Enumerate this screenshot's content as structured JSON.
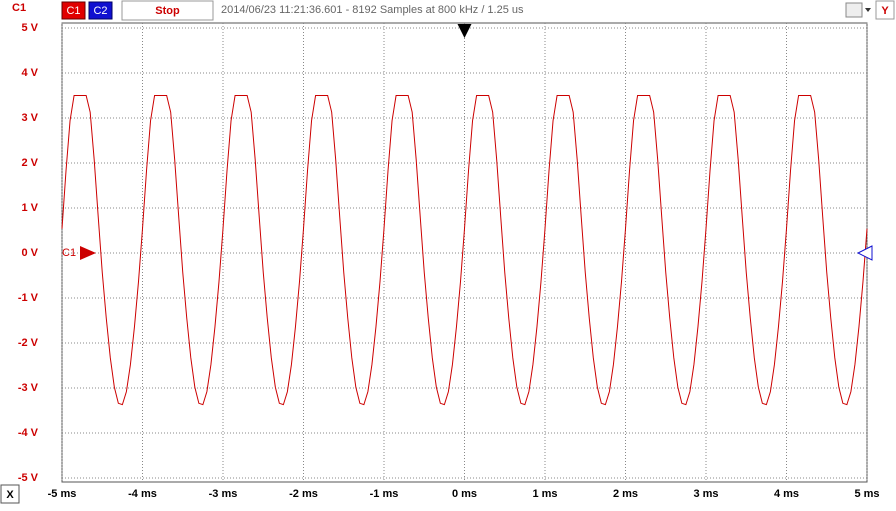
{
  "chart_data": {
    "type": "line",
    "y_axis_label": "C1",
    "buttons": [
      "C1",
      "C2",
      "Stop"
    ],
    "status": "2014/06/23 11:21:36.601 - 8192 Samples at 800 kHz / 1.25 us",
    "y_button": "Y",
    "x_button": "X",
    "xlim": [
      -5,
      5
    ],
    "ylim": [
      -5,
      5
    ],
    "xticks": [
      {
        "value": -5,
        "label": "-5 ms"
      },
      {
        "value": -4,
        "label": "-4 ms"
      },
      {
        "value": -3,
        "label": "-3 ms"
      },
      {
        "value": -2,
        "label": "-2 ms"
      },
      {
        "value": -1,
        "label": "-1 ms"
      },
      {
        "value": 0,
        "label": "0 ms"
      },
      {
        "value": 1,
        "label": "1 ms"
      },
      {
        "value": 2,
        "label": "2 ms"
      },
      {
        "value": 3,
        "label": "3 ms"
      },
      {
        "value": 4,
        "label": "4 ms"
      },
      {
        "value": 5,
        "label": "5 ms"
      }
    ],
    "yticks": [
      {
        "value": 5,
        "label": "5 V"
      },
      {
        "value": 4,
        "label": "4 V"
      },
      {
        "value": 3,
        "label": "3 V"
      },
      {
        "value": 2,
        "label": "2 V"
      },
      {
        "value": 1,
        "label": "1 V"
      },
      {
        "value": 0,
        "label": "0 V"
      },
      {
        "value": -1,
        "label": "-1 V"
      },
      {
        "value": -2,
        "label": "-2 V"
      },
      {
        "value": -3,
        "label": "-3 V"
      },
      {
        "value": -4,
        "label": "-4 V"
      },
      {
        "value": -5,
        "label": "-5 V"
      }
    ],
    "grid": true,
    "x": [
      -5,
      -4.95,
      -4.9,
      -4.85,
      -4.8,
      -4.75,
      -4.7,
      -4.65,
      -4.6,
      -4.55,
      -4.5,
      -4.45,
      -4.4,
      -4.35,
      -4.3,
      -4.25,
      -4.2,
      -4.15,
      -4.1,
      -4.05,
      -4,
      -3.95,
      -3.9,
      -3.85,
      -3.8,
      -3.75,
      -3.7,
      -3.65,
      -3.6,
      -3.55,
      -3.5,
      -3.45,
      -3.4,
      -3.35,
      -3.3,
      -3.25,
      -3.2,
      -3.15,
      -3.1,
      -3.05,
      -3,
      -2.95,
      -2.9,
      -2.85,
      -2.8,
      -2.75,
      -2.7,
      -2.65,
      -2.6,
      -2.55,
      -2.5,
      -2.45,
      -2.4,
      -2.35,
      -2.3,
      -2.25,
      -2.2,
      -2.15,
      -2.1,
      -2.05,
      -2,
      -1.95,
      -1.9,
      -1.85,
      -1.8,
      -1.75,
      -1.7,
      -1.65,
      -1.6,
      -1.55,
      -1.5,
      -1.45,
      -1.4,
      -1.35,
      -1.3,
      -1.25,
      -1.2,
      -1.15,
      -1.1,
      -1.05,
      -1,
      -0.95,
      -0.9,
      -0.85,
      -0.8,
      -0.75,
      -0.7,
      -0.65,
      -0.6,
      -0.55,
      -0.5,
      -0.45,
      -0.4,
      -0.35,
      -0.3,
      -0.25,
      -0.2,
      -0.15,
      -0.1,
      -0.05,
      0,
      0.05,
      0.1,
      0.15,
      0.2,
      0.25,
      0.3,
      0.35,
      0.4,
      0.45,
      0.5,
      0.55,
      0.6,
      0.65,
      0.7,
      0.75,
      0.8,
      0.85,
      0.9,
      0.95,
      1,
      1.05,
      1.1,
      1.15,
      1.2,
      1.25,
      1.3,
      1.35,
      1.4,
      1.45,
      1.5,
      1.55,
      1.6,
      1.65,
      1.7,
      1.75,
      1.8,
      1.85,
      1.9,
      1.95,
      2,
      2.05,
      2.1,
      2.15,
      2.2,
      2.25,
      2.3,
      2.35,
      2.4,
      2.45,
      2.5,
      2.55,
      2.6,
      2.65,
      2.7,
      2.75,
      2.8,
      2.85,
      2.9,
      2.95,
      3,
      3.05,
      3.1,
      3.15,
      3.2,
      3.25,
      3.3,
      3.35,
      3.4,
      3.45,
      3.5,
      3.55,
      3.6,
      3.65,
      3.7,
      3.75,
      3.8,
      3.85,
      3.9,
      3.95,
      4,
      4.05,
      4.1,
      4.15,
      4.2,
      4.25,
      4.3,
      4.35,
      4.4,
      4.45,
      4.5,
      4.55,
      4.6,
      4.65,
      4.7,
      4.75,
      4.8,
      4.85,
      4.9,
      4.95,
      5
    ],
    "series": [
      {
        "name": "C1",
        "color": "#cc0000",
        "values": [
          0.54,
          1.83,
          2.94,
          3.5,
          3.5,
          3.5,
          3.5,
          3.13,
          2.07,
          0.8,
          -0.43,
          -1.45,
          -2.33,
          -2.98,
          -3.34,
          -3.37,
          -3.08,
          -2.48,
          -1.64,
          -0.64,
          0.54,
          1.83,
          2.94,
          3.5,
          3.5,
          3.5,
          3.5,
          3.13,
          2.07,
          0.8,
          -0.43,
          -1.45,
          -2.33,
          -2.98,
          -3.34,
          -3.37,
          -3.08,
          -2.48,
          -1.64,
          -0.64,
          0.54,
          1.83,
          2.94,
          3.5,
          3.5,
          3.5,
          3.5,
          3.13,
          2.07,
          0.8,
          -0.43,
          -1.45,
          -2.33,
          -2.98,
          -3.34,
          -3.37,
          -3.08,
          -2.48,
          -1.64,
          -0.64,
          0.54,
          1.83,
          2.94,
          3.5,
          3.5,
          3.5,
          3.5,
          3.13,
          2.07,
          0.8,
          -0.43,
          -1.45,
          -2.33,
          -2.98,
          -3.34,
          -3.37,
          -3.08,
          -2.48,
          -1.64,
          -0.64,
          0.54,
          1.83,
          2.94,
          3.5,
          3.5,
          3.5,
          3.5,
          3.13,
          2.07,
          0.8,
          -0.43,
          -1.45,
          -2.33,
          -2.98,
          -3.34,
          -3.37,
          -3.08,
          -2.48,
          -1.64,
          -0.64,
          0.54,
          1.83,
          2.94,
          3.5,
          3.5,
          3.5,
          3.5,
          3.13,
          2.07,
          0.8,
          -0.43,
          -1.45,
          -2.33,
          -2.98,
          -3.34,
          -3.37,
          -3.08,
          -2.48,
          -1.64,
          -0.64,
          0.54,
          1.83,
          2.94,
          3.5,
          3.5,
          3.5,
          3.5,
          3.13,
          2.07,
          0.8,
          -0.43,
          -1.45,
          -2.33,
          -2.98,
          -3.34,
          -3.37,
          -3.08,
          -2.48,
          -1.64,
          -0.64,
          0.54,
          1.83,
          2.94,
          3.5,
          3.5,
          3.5,
          3.5,
          3.13,
          2.07,
          0.8,
          -0.43,
          -1.45,
          -2.33,
          -2.98,
          -3.34,
          -3.37,
          -3.08,
          -2.48,
          -1.64,
          -0.64,
          0.54,
          1.83,
          2.94,
          3.5,
          3.5,
          3.5,
          3.5,
          3.13,
          2.07,
          0.8,
          -0.43,
          -1.45,
          -2.33,
          -2.98,
          -3.34,
          -3.37,
          -3.08,
          -2.48,
          -1.64,
          -0.64,
          0.54,
          1.83,
          2.94,
          3.5,
          3.5,
          3.5,
          3.5,
          3.13,
          2.07,
          0.8,
          -0.43,
          -1.45,
          -2.33,
          -2.98,
          -3.34,
          -3.37,
          -3.08,
          -2.48,
          -1.64,
          -0.64,
          0.54
        ]
      }
    ]
  }
}
